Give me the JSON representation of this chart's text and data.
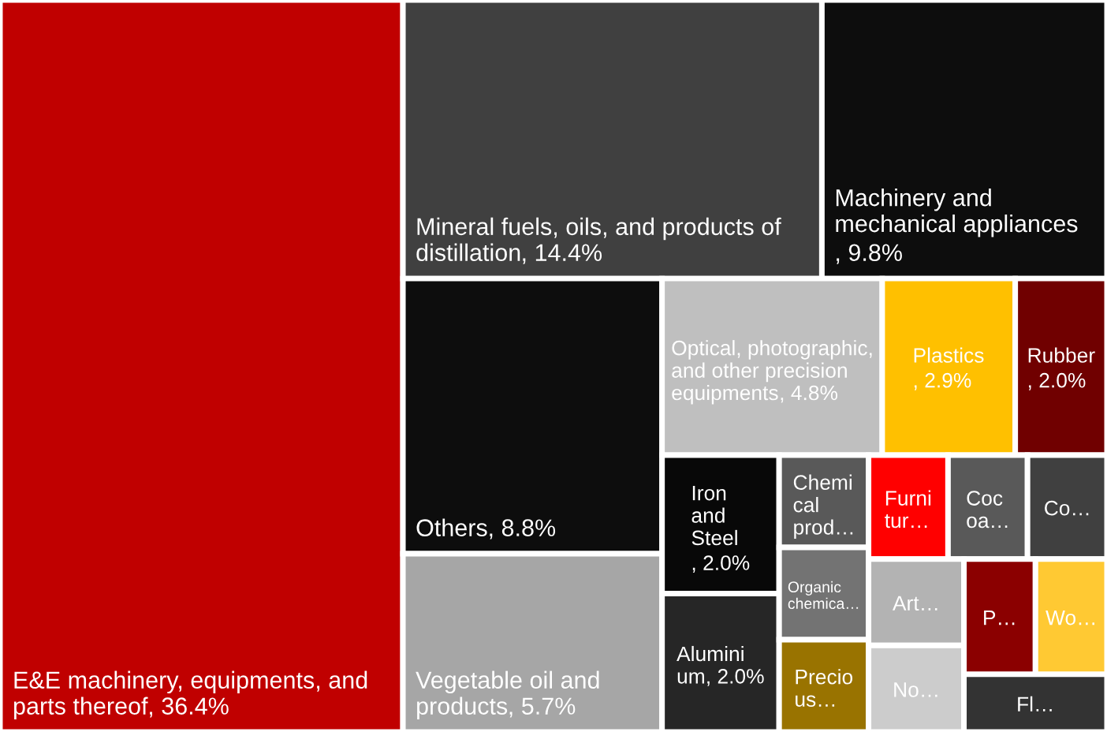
{
  "chart_data": {
    "type": "other",
    "categories": [
      "E&E machinery, equipments, and\nparts thereof",
      "Mineral fuels, oils, and products of\ndistillation",
      "Machinery and\nmechanical appliances",
      "Others",
      "Vegetable oil and\nproducts",
      "Optical, photographic,\nand other precision\nequipments",
      "Plastics",
      "Rubber",
      "Iron\nand\nSteel",
      "Alumini\num",
      "Chemi\ncal\nprod…",
      "Organic\nchemica…",
      "Precio\nus…",
      "Furni\ntur…",
      "Coc\noa…",
      "Co…",
      "Art…",
      "No…",
      "P…",
      "Wo…",
      "Fl…"
    ],
    "values": [
      36.4,
      14.4,
      9.8,
      8.8,
      5.7,
      4.8,
      2.9,
      2.0,
      2.0,
      2.0,
      null,
      null,
      null,
      null,
      null,
      null,
      null,
      null,
      null,
      null,
      null
    ],
    "value_labels": [
      ", 36.4%",
      ", 14.4%",
      ", 9.8%",
      ", 8.8%",
      ", 5.7%",
      ", 4.8%",
      ", 2.9%",
      ", 2.0%",
      ", 2.0%",
      ", 2.0%",
      null,
      null,
      null,
      null,
      null,
      null,
      null,
      null,
      null,
      null,
      null
    ],
    "colors": [
      "#c00000",
      "#404040",
      "#0d0d0d",
      "#0d0d0d",
      "#a6a6a6",
      "#bfbfbf",
      "#ffc000",
      "#700000",
      "#080808",
      "#262626",
      "#595959",
      "#737373",
      "#997300",
      "#ff0000",
      "#595959",
      "#404040",
      "#b3b3b3",
      "#cccccc",
      "#8b0000",
      "#ffc933",
      "#333333"
    ]
  }
}
